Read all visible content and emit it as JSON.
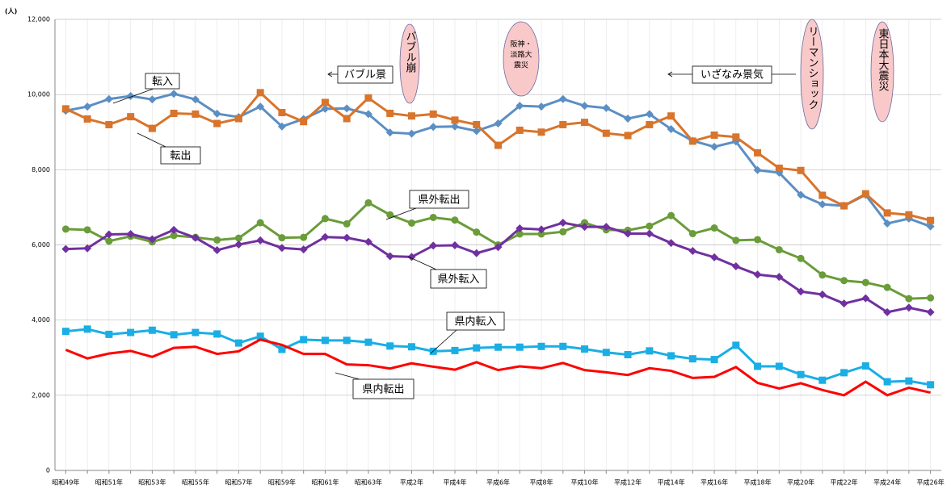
{
  "chart_data": {
    "type": "line",
    "unit_label": "(人)",
    "categories": [
      "昭和49年",
      null,
      "昭和51年",
      null,
      "昭和53年",
      null,
      "昭和55年",
      null,
      "昭和57年",
      null,
      "昭和59年",
      null,
      "昭和61年",
      null,
      "昭和63年",
      null,
      "平成2年",
      null,
      "平成4年",
      null,
      "平成6年",
      null,
      "平成8年",
      null,
      "平成10年",
      null,
      "平成12年",
      null,
      "平成14年",
      null,
      "平成16年",
      null,
      "平成18年",
      null,
      "平成20年",
      null,
      "平成22年",
      null,
      "平成24年",
      null,
      "平成26年"
    ],
    "ylim": [
      0,
      12000
    ],
    "yticks": [
      0,
      {
        "value": 2000,
        "label": "2,000"
      },
      {
        "value": 4000,
        "label": "4,000"
      },
      {
        "value": 6000,
        "label": "6,000"
      },
      {
        "value": 8000,
        "label": "8,000"
      },
      {
        "value": 10000,
        "label": "10,000"
      },
      {
        "value": 12000,
        "label": "12,000"
      }
    ],
    "grid": true,
    "series": [
      {
        "name": "転入",
        "color": "#5b8fc4",
        "marker": "diamond",
        "values": [
          9570,
          9680,
          9880,
          9960,
          9870,
          10020,
          9870,
          9490,
          9400,
          9680,
          9150,
          9350,
          9620,
          9630,
          9480,
          8990,
          8960,
          9140,
          9150,
          9030,
          9230,
          9700,
          9680,
          9880,
          9700,
          9640,
          9360,
          9480,
          9080,
          8770,
          8610,
          8750,
          7990,
          7920,
          7330,
          7080,
          7040,
          7330,
          6570,
          6700,
          6490
        ]
      },
      {
        "name": "転出",
        "color": "#d8742b",
        "marker": "square",
        "values": [
          9620,
          9350,
          9200,
          9410,
          9100,
          9500,
          9480,
          9230,
          9360,
          10050,
          9520,
          9280,
          9790,
          9360,
          9910,
          9500,
          9430,
          9480,
          9320,
          9200,
          8650,
          9050,
          9000,
          9200,
          9260,
          8970,
          8910,
          9200,
          9430,
          8760,
          8920,
          8870,
          8450,
          8040,
          7980,
          7320,
          7040,
          7360,
          6850,
          6800,
          6650
        ]
      },
      {
        "name": "県外転出",
        "color": "#6a9c3a",
        "marker": "circle",
        "values": [
          6420,
          6400,
          6100,
          6230,
          6080,
          6250,
          6200,
          6130,
          6180,
          6590,
          6190,
          6200,
          6700,
          6560,
          7120,
          6800,
          6580,
          6730,
          6660,
          6340,
          6000,
          6290,
          6290,
          6350,
          6590,
          6400,
          6390,
          6500,
          6780,
          6300,
          6450,
          6120,
          6140,
          5870,
          5640,
          5200,
          5050,
          5000,
          4870,
          4570,
          4590
        ]
      },
      {
        "name": "県外転入",
        "color": "#7030a0",
        "marker": "diamond",
        "values": [
          5890,
          5910,
          6280,
          6290,
          6150,
          6400,
          6190,
          5860,
          6010,
          6120,
          5920,
          5880,
          6210,
          6190,
          6080,
          5700,
          5680,
          5980,
          5990,
          5780,
          5940,
          6440,
          6410,
          6590,
          6480,
          6480,
          6300,
          6300,
          6050,
          5840,
          5670,
          5430,
          5210,
          5150,
          4760,
          4680,
          4440,
          4580,
          4210,
          4330,
          4210
        ]
      },
      {
        "name": "県内転入",
        "color": "#1aaee5",
        "marker": "square",
        "values": [
          3700,
          3760,
          3620,
          3670,
          3730,
          3610,
          3670,
          3630,
          3390,
          3570,
          3220,
          3480,
          3460,
          3460,
          3410,
          3310,
          3290,
          3170,
          3190,
          3260,
          3280,
          3280,
          3300,
          3300,
          3230,
          3140,
          3080,
          3180,
          3050,
          2970,
          2950,
          3330,
          2770,
          2770,
          2550,
          2400,
          2600,
          2780,
          2360,
          2380,
          2280
        ]
      },
      {
        "name": "県内転出",
        "color": "#ff0000",
        "marker": "none",
        "values": [
          3210,
          2980,
          3110,
          3180,
          3020,
          3260,
          3290,
          3100,
          3170,
          3480,
          3340,
          3100,
          3100,
          2820,
          2800,
          2710,
          2850,
          2760,
          2680,
          2880,
          2670,
          2770,
          2720,
          2860,
          2670,
          2610,
          2540,
          2720,
          2650,
          2460,
          2490,
          2750,
          2330,
          2180,
          2320,
          2140,
          2000,
          2360,
          2000,
          2200,
          2070
        ]
      }
    ],
    "annotations": [
      {
        "text": "バブル景"
      },
      {
        "text": "いざなみ景気"
      },
      {
        "text": "バブル崩"
      },
      {
        "text": [
          "阪神・",
          "淡路大",
          "震災"
        ]
      },
      {
        "text": "リーマンショック"
      },
      {
        "text": "東日本大震災"
      }
    ]
  }
}
